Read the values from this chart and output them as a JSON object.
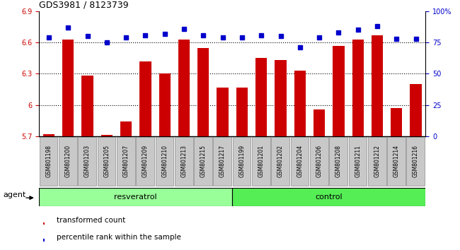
{
  "title": "GDS3981 / 8123739",
  "samples": [
    "GSM801198",
    "GSM801200",
    "GSM801203",
    "GSM801205",
    "GSM801207",
    "GSM801209",
    "GSM801210",
    "GSM801213",
    "GSM801215",
    "GSM801217",
    "GSM801199",
    "GSM801201",
    "GSM801202",
    "GSM801204",
    "GSM801206",
    "GSM801208",
    "GSM801211",
    "GSM801212",
    "GSM801214",
    "GSM801216"
  ],
  "transformed_counts": [
    5.72,
    6.63,
    6.28,
    5.71,
    5.84,
    6.42,
    6.3,
    6.63,
    6.55,
    6.17,
    6.17,
    6.45,
    6.43,
    6.33,
    5.96,
    6.57,
    6.63,
    6.67,
    5.97,
    6.2
  ],
  "percentile_ranks": [
    79,
    87,
    80,
    75,
    79,
    81,
    82,
    86,
    81,
    79,
    79,
    81,
    80,
    71,
    79,
    83,
    85,
    88,
    78,
    78
  ],
  "n_resveratrol": 10,
  "n_control": 10,
  "resveratrol_color": "#99ff99",
  "control_color": "#55ee55",
  "bar_color": "#cc0000",
  "dot_color": "#0000cc",
  "ylim_left": [
    5.7,
    6.9
  ],
  "ylim_right": [
    0,
    100
  ],
  "yticks_left": [
    5.7,
    6.0,
    6.3,
    6.6,
    6.9
  ],
  "ytick_labels_left": [
    "5.7",
    "6",
    "6.3",
    "6.6",
    "6.9"
  ],
  "yticks_right": [
    0,
    25,
    50,
    75,
    100
  ],
  "ytick_labels_right": [
    "0",
    "25",
    "50",
    "75",
    "100%"
  ],
  "grid_values": [
    6.0,
    6.3,
    6.6
  ],
  "legend_items": [
    "transformed count",
    "percentile rank within the sample"
  ],
  "agent_label": "agent",
  "group_labels": [
    "resveratrol",
    "control"
  ],
  "sample_label_color": "#333333",
  "xtick_bg_color": "#c8c8c8",
  "background_color": "#ffffff"
}
